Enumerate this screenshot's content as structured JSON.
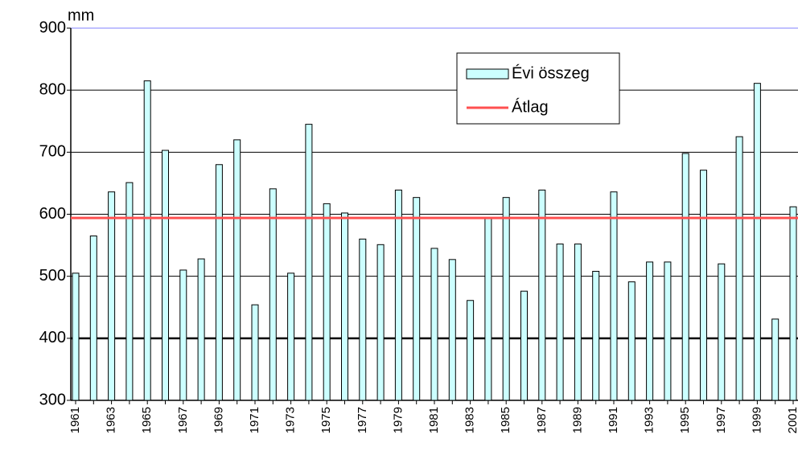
{
  "chart_data": {
    "type": "bar",
    "y_unit": "mm",
    "categories": [
      "1961",
      null,
      "1963",
      null,
      "1965",
      null,
      "1967",
      null,
      "1969",
      null,
      "1971",
      null,
      "1973",
      null,
      "1975",
      null,
      "1977",
      null,
      "1979",
      null,
      "1981",
      null,
      "1983",
      null,
      "1985",
      null,
      "1987",
      null,
      "1989",
      null,
      "1991",
      null,
      "1993",
      null,
      "1995",
      null,
      "1997",
      null,
      "1999",
      null,
      "2001"
    ],
    "series": [
      {
        "name": "Évi összeg",
        "color": "#ccffff",
        "values": [
          505,
          565,
          636,
          651,
          815,
          703,
          510,
          528,
          680,
          720,
          454,
          641,
          505,
          745,
          617,
          602,
          560,
          551,
          639,
          627,
          545,
          527,
          461,
          593,
          627,
          476,
          639,
          552,
          552,
          508,
          636,
          491,
          523,
          523,
          698,
          671,
          520,
          725,
          811,
          431,
          612
        ]
      },
      {
        "name": "Átlag",
        "color": "#ff5050",
        "type": "line",
        "value": 594
      }
    ],
    "ylim": [
      300,
      900
    ],
    "yticks": [
      300,
      400,
      500,
      600,
      700,
      800,
      900
    ],
    "grid": true
  }
}
